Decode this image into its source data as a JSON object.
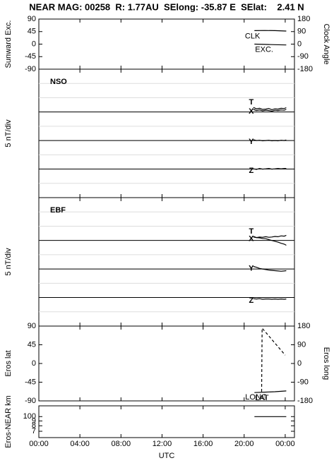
{
  "title": "NEAR MAG: 00258  R: 1.77AU  SElong: -35.87 E  SElat:    2.41 N",
  "chart_data": [
    {
      "type": "line",
      "ylabel": "Sunward Exc.",
      "y2label": "Clock Angle",
      "xlim": [
        0,
        24.9
      ],
      "ylim": [
        -90,
        90
      ],
      "yticks": [
        90,
        45,
        0,
        -45,
        -90
      ],
      "y2lim": [
        -180,
        180
      ],
      "y2ticks": [
        180,
        90,
        0,
        -90,
        -180
      ],
      "series": [
        {
          "name": "CLK",
          "color": "#000000",
          "axis": "y2",
          "x": [
            21,
            22,
            23,
            24.1
          ],
          "values": [
            97,
            98,
            97,
            94
          ]
        },
        {
          "name": "EXC.",
          "color": "#000000",
          "x": [
            21,
            22,
            23,
            24.1
          ],
          "values": [
            0,
            -1,
            -2,
            -3
          ]
        }
      ]
    },
    {
      "type": "line",
      "label": "NSO",
      "ylabel": "5 nT/div",
      "xlim": [
        0,
        24.9
      ],
      "ylim": [
        0,
        45
      ],
      "yticks": [
        5,
        10,
        15,
        20,
        25,
        30,
        35,
        40
      ],
      "tick_labels": false,
      "grid": true,
      "reference_lines": [
        30,
        20,
        10
      ],
      "series": [
        {
          "name": "T",
          "color": "#000000",
          "x": [
            20.9,
            21.2,
            21.5,
            21.8,
            22.1,
            22.4,
            22.7,
            23.0,
            23.3,
            23.6,
            23.9,
            24.1
          ],
          "values": [
            31.6,
            31.1,
            31.3,
            30.9,
            31.0,
            31.2,
            30.8,
            31.1,
            31.0,
            31.3,
            31.2,
            31.5
          ]
        },
        {
          "name": "X",
          "color": "#000000",
          "x": [
            20.9,
            21.2,
            21.5,
            21.8,
            22.1,
            22.4,
            22.7,
            23.0,
            23.3,
            23.6,
            23.9,
            24.1
          ],
          "values": [
            30.9,
            30.5,
            30.7,
            30.4,
            30.6,
            30.5,
            30.3,
            30.6,
            30.5,
            30.7,
            30.6,
            30.9
          ]
        },
        {
          "name": "Y",
          "color": "#000000",
          "x": [
            20.9,
            21.2,
            21.5,
            21.8,
            22.1,
            22.4,
            22.7,
            23.0,
            23.3,
            23.6,
            23.9,
            24.1
          ],
          "values": [
            20.3,
            20.0,
            20.1,
            19.9,
            20.0,
            20.1,
            19.9,
            20.0,
            19.9,
            20.1,
            20.0,
            20.2
          ]
        },
        {
          "name": "Z",
          "color": "#000000",
          "x": [
            20.9,
            21.2,
            21.5,
            21.8,
            22.1,
            22.4,
            22.7,
            23.0,
            23.3,
            23.6,
            23.9,
            24.1
          ],
          "values": [
            10.1,
            9.9,
            10.2,
            10.0,
            10.1,
            10.2,
            10.0,
            10.1,
            10.2,
            10.1,
            10.2,
            10.2
          ]
        }
      ]
    },
    {
      "type": "line",
      "label": "EBF",
      "ylabel": "5 nT/div",
      "xlim": [
        0,
        24.9
      ],
      "ylim": [
        0,
        45
      ],
      "yticks": [
        5,
        10,
        15,
        20,
        25,
        30,
        35,
        40
      ],
      "tick_labels": false,
      "grid": true,
      "reference_lines": [
        30,
        20,
        10
      ],
      "series": [
        {
          "name": "T",
          "color": "#000000",
          "x": [
            20.9,
            21.2,
            21.5,
            21.8,
            22.1,
            22.4,
            22.7,
            23.0,
            23.3,
            23.6,
            23.9,
            24.1
          ],
          "values": [
            31.4,
            31.0,
            31.2,
            31.1,
            31.3,
            31.1,
            31.2,
            31.4,
            31.3,
            31.6,
            31.5,
            31.8
          ]
        },
        {
          "name": "X",
          "color": "#000000",
          "x": [
            20.9,
            21.2,
            21.5,
            21.8,
            22.1,
            22.4,
            22.7,
            23.0,
            23.3,
            23.6,
            23.9,
            24.1
          ],
          "values": [
            31.2,
            31.0,
            30.9,
            30.7,
            30.6,
            30.3,
            30.0,
            29.7,
            29.4,
            29.0,
            28.7,
            28.3
          ]
        },
        {
          "name": "Y",
          "color": "#000000",
          "x": [
            20.9,
            21.2,
            21.5,
            21.8,
            22.1,
            22.4,
            22.7,
            23.0,
            23.3,
            23.6,
            23.9,
            24.1
          ],
          "values": [
            20.9,
            20.6,
            20.2,
            20.0,
            19.8,
            19.6,
            19.5,
            19.4,
            19.3,
            19.2,
            19.3,
            19.4
          ]
        },
        {
          "name": "Z",
          "color": "#000000",
          "x": [
            20.9,
            21.2,
            21.5,
            21.8,
            22.1,
            22.4,
            22.7,
            23.0,
            23.3,
            23.6,
            23.9,
            24.1
          ],
          "values": [
            9.6,
            9.5,
            9.6,
            9.4,
            9.5,
            9.5,
            9.4,
            9.5,
            9.4,
            9.5,
            9.4,
            9.5
          ]
        }
      ]
    },
    {
      "type": "line",
      "ylabel": "Eros lat",
      "y2label": "Eros long",
      "xlim": [
        0,
        24.9
      ],
      "ylim": [
        -90,
        90
      ],
      "yticks": [
        90,
        45,
        0,
        -45,
        -90
      ],
      "y2lim": [
        -180,
        180
      ],
      "y2ticks": [
        180,
        90,
        0,
        -90,
        -180
      ],
      "series": [
        {
          "name": "LAT",
          "color": "#000000",
          "x": [
            21,
            22,
            23,
            24.1
          ],
          "values": [
            -70,
            -69,
            -68,
            -66
          ]
        },
        {
          "name": "LONG",
          "color": "#000000",
          "axis": "y2",
          "dash": true,
          "x": [
            21.7,
            21.75,
            24.0
          ],
          "values": [
            -136,
            170,
            40
          ]
        }
      ]
    },
    {
      "type": "line",
      "ylabel": "Eros-NEAR km",
      "xlabel": "UTC",
      "log": true,
      "xlim": [
        0,
        24.9
      ],
      "ylim": [
        60,
        130
      ],
      "yticks": [
        100,
        {
          "value": 90,
          "label": "9"
        },
        {
          "value": 80,
          "label": "8"
        },
        {
          "value": 70,
          "label": "7"
        }
      ],
      "xticks": [
        {
          "value": 0,
          "label": "00:00"
        },
        {
          "value": 4,
          "label": "04:00"
        },
        {
          "value": 8,
          "label": "08:00"
        },
        {
          "value": 12,
          "label": "12:00"
        },
        {
          "value": 16,
          "label": "16:00"
        },
        {
          "value": 20,
          "label": "20:00"
        },
        {
          "value": 24,
          "label": "00:00"
        }
      ],
      "series": [
        {
          "color": "#000000",
          "x": [
            21,
            24.1
          ],
          "values": [
            100,
            100
          ]
        }
      ]
    }
  ]
}
